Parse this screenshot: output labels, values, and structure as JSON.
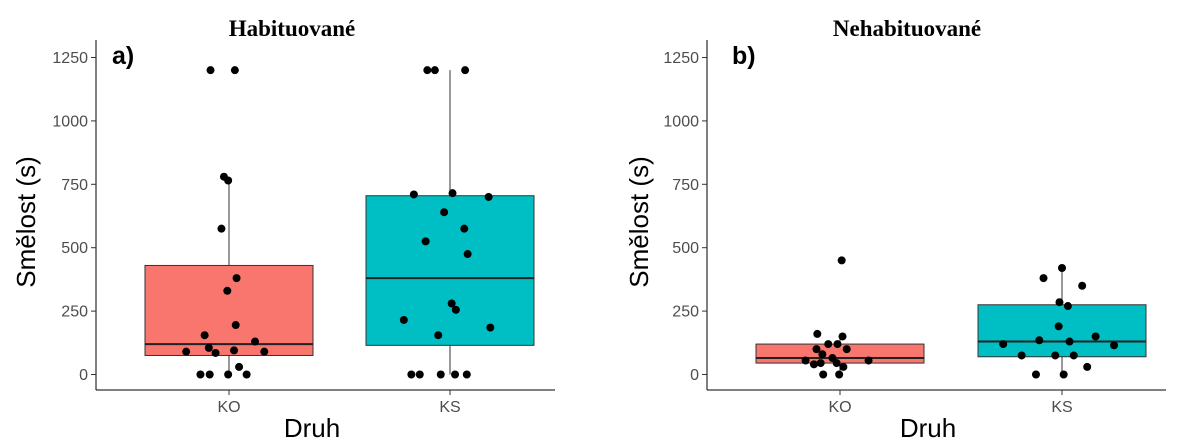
{
  "chart_data": [
    {
      "type": "box",
      "title": "Habituované",
      "panel_label": "a)",
      "xlabel": "Druh",
      "ylabel": "Smělost (s)",
      "categories": [
        "KO",
        "KS"
      ],
      "ylim": [
        0,
        1250
      ],
      "yticks": [
        0,
        250,
        500,
        750,
        1000,
        1250
      ],
      "grid": false,
      "boxes": [
        {
          "category": "KO",
          "color": "#F8766D",
          "q1": 75,
          "median": 120,
          "q3": 430,
          "whisker_low": 0,
          "whisker_high": 770
        },
        {
          "category": "KS",
          "color": "#00BFC4",
          "q1": 115,
          "median": 380,
          "q3": 705,
          "whisker_low": 0,
          "whisker_high": 1200
        }
      ],
      "points": [
        {
          "category": "KO",
          "dx": -0.22,
          "y": 1200
        },
        {
          "category": "KO",
          "dx": 0.07,
          "y": 1200
        },
        {
          "category": "KO",
          "dx": -0.06,
          "y": 780
        },
        {
          "category": "KO",
          "dx": -0.01,
          "y": 765
        },
        {
          "category": "KO",
          "dx": -0.09,
          "y": 575
        },
        {
          "category": "KO",
          "dx": 0.09,
          "y": 380
        },
        {
          "category": "KO",
          "dx": -0.02,
          "y": 330
        },
        {
          "category": "KO",
          "dx": 0.08,
          "y": 195
        },
        {
          "category": "KO",
          "dx": -0.29,
          "y": 155
        },
        {
          "category": "KO",
          "dx": 0.31,
          "y": 130
        },
        {
          "category": "KO",
          "dx": -0.24,
          "y": 105
        },
        {
          "category": "KO",
          "dx": 0.06,
          "y": 95
        },
        {
          "category": "KO",
          "dx": -0.51,
          "y": 90
        },
        {
          "category": "KO",
          "dx": -0.16,
          "y": 85
        },
        {
          "category": "KO",
          "dx": 0.42,
          "y": 90
        },
        {
          "category": "KO",
          "dx": 0.12,
          "y": 30
        },
        {
          "category": "KO",
          "dx": -0.34,
          "y": 0
        },
        {
          "category": "KO",
          "dx": -0.23,
          "y": 0
        },
        {
          "category": "KO",
          "dx": -0.01,
          "y": 0
        },
        {
          "category": "KO",
          "dx": 0.21,
          "y": 0
        },
        {
          "category": "KS",
          "dx": -0.27,
          "y": 1200
        },
        {
          "category": "KS",
          "dx": -0.18,
          "y": 1200
        },
        {
          "category": "KS",
          "dx": 0.18,
          "y": 1200
        },
        {
          "category": "KS",
          "dx": -0.43,
          "y": 710
        },
        {
          "category": "KS",
          "dx": 0.03,
          "y": 715
        },
        {
          "category": "KS",
          "dx": 0.46,
          "y": 700
        },
        {
          "category": "KS",
          "dx": -0.07,
          "y": 640
        },
        {
          "category": "KS",
          "dx": 0.17,
          "y": 575
        },
        {
          "category": "KS",
          "dx": -0.29,
          "y": 525
        },
        {
          "category": "KS",
          "dx": 0.21,
          "y": 475
        },
        {
          "category": "KS",
          "dx": 0.02,
          "y": 280
        },
        {
          "category": "KS",
          "dx": 0.07,
          "y": 255
        },
        {
          "category": "KS",
          "dx": -0.55,
          "y": 215
        },
        {
          "category": "KS",
          "dx": 0.48,
          "y": 185
        },
        {
          "category": "KS",
          "dx": -0.14,
          "y": 155
        },
        {
          "category": "KS",
          "dx": -0.46,
          "y": 0
        },
        {
          "category": "KS",
          "dx": -0.36,
          "y": 0
        },
        {
          "category": "KS",
          "dx": -0.11,
          "y": 0
        },
        {
          "category": "KS",
          "dx": 0.06,
          "y": 0
        },
        {
          "category": "KS",
          "dx": 0.2,
          "y": 0
        }
      ]
    },
    {
      "type": "box",
      "title": "Nehabituované",
      "panel_label": "b)",
      "xlabel": "Druh",
      "ylabel": "Smělost (s)",
      "categories": [
        "KO",
        "KS"
      ],
      "ylim": [
        0,
        1250
      ],
      "yticks": [
        0,
        250,
        500,
        750,
        1000,
        1250
      ],
      "grid": false,
      "boxes": [
        {
          "category": "KO",
          "color": "#F8766D",
          "q1": 45,
          "median": 65,
          "q3": 120,
          "whisker_low": 0,
          "whisker_high": 160
        },
        {
          "category": "KS",
          "color": "#00BFC4",
          "q1": 70,
          "median": 130,
          "q3": 275,
          "whisker_low": 0,
          "whisker_high": 420
        }
      ],
      "points": [
        {
          "category": "KO",
          "dx": 0.02,
          "y": 450
        },
        {
          "category": "KO",
          "dx": -0.27,
          "y": 160
        },
        {
          "category": "KO",
          "dx": 0.03,
          "y": 150
        },
        {
          "category": "KO",
          "dx": -0.03,
          "y": 120
        },
        {
          "category": "KO",
          "dx": -0.14,
          "y": 120
        },
        {
          "category": "KO",
          "dx": -0.28,
          "y": 100
        },
        {
          "category": "KO",
          "dx": 0.08,
          "y": 100
        },
        {
          "category": "KO",
          "dx": -0.21,
          "y": 80
        },
        {
          "category": "KO",
          "dx": -0.09,
          "y": 65
        },
        {
          "category": "KO",
          "dx": -0.41,
          "y": 55
        },
        {
          "category": "KO",
          "dx": 0.34,
          "y": 55
        },
        {
          "category": "KO",
          "dx": -0.23,
          "y": 45
        },
        {
          "category": "KO",
          "dx": -0.04,
          "y": 45
        },
        {
          "category": "KO",
          "dx": -0.31,
          "y": 40
        },
        {
          "category": "KO",
          "dx": 0.04,
          "y": 30
        },
        {
          "category": "KO",
          "dx": -0.2,
          "y": 0
        },
        {
          "category": "KO",
          "dx": -0.01,
          "y": 0
        },
        {
          "category": "KS",
          "dx": 0.0,
          "y": 420
        },
        {
          "category": "KS",
          "dx": -0.22,
          "y": 380
        },
        {
          "category": "KS",
          "dx": 0.24,
          "y": 350
        },
        {
          "category": "KS",
          "dx": -0.03,
          "y": 285
        },
        {
          "category": "KS",
          "dx": 0.07,
          "y": 270
        },
        {
          "category": "KS",
          "dx": -0.04,
          "y": 190
        },
        {
          "category": "KS",
          "dx": 0.4,
          "y": 150
        },
        {
          "category": "KS",
          "dx": -0.27,
          "y": 135
        },
        {
          "category": "KS",
          "dx": 0.09,
          "y": 130
        },
        {
          "category": "KS",
          "dx": -0.7,
          "y": 120
        },
        {
          "category": "KS",
          "dx": 0.62,
          "y": 115
        },
        {
          "category": "KS",
          "dx": -0.48,
          "y": 75
        },
        {
          "category": "KS",
          "dx": -0.08,
          "y": 75
        },
        {
          "category": "KS",
          "dx": 0.14,
          "y": 75
        },
        {
          "category": "KS",
          "dx": 0.3,
          "y": 30
        },
        {
          "category": "KS",
          "dx": -0.31,
          "y": 0
        },
        {
          "category": "KS",
          "dx": 0.02,
          "y": 0
        }
      ]
    }
  ]
}
